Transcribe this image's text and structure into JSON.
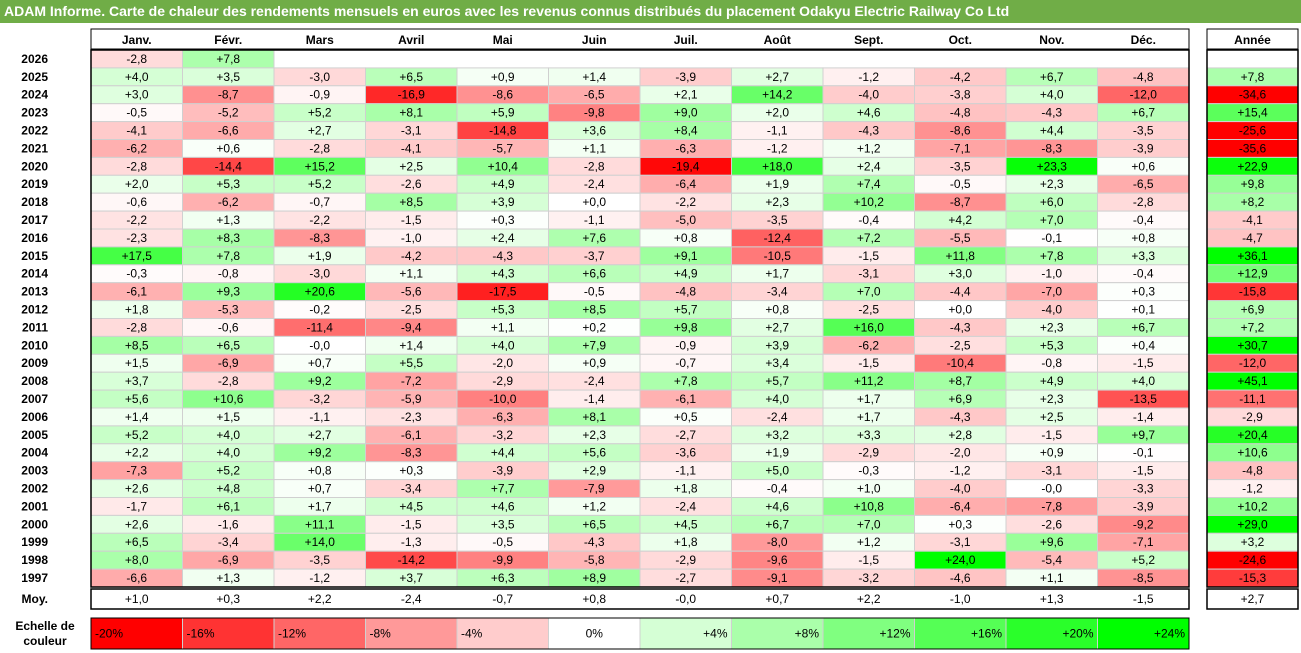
{
  "title": "ADAM Informe. Carte de chaleur des rendements mensuels en euros avec les revenus connus distribués du placement Odakyu Electric Railway Co Ltd",
  "chart_data": {
    "type": "heatmap",
    "months": [
      "Janv.",
      "Févr.",
      "Mars",
      "Avril",
      "Mai",
      "Juin",
      "Juil.",
      "Août",
      "Sept.",
      "Oct.",
      "Nov.",
      "Déc."
    ],
    "annual_header": "Année",
    "years": [
      "2026",
      "2025",
      "2024",
      "2023",
      "2022",
      "2021",
      "2020",
      "2019",
      "2018",
      "2017",
      "2016",
      "2015",
      "2014",
      "2013",
      "2012",
      "2011",
      "2010",
      "2009",
      "2008",
      "2007",
      "2006",
      "2005",
      "2004",
      "2003",
      "2002",
      "2001",
      "2000",
      "1999",
      "1998",
      "1997"
    ],
    "values": [
      [
        "-2,8",
        "+7,8",
        "",
        "",
        "",
        "",
        "",
        "",
        "",
        "",
        "",
        ""
      ],
      [
        "+4,0",
        "+3,5",
        "-3,0",
        "+6,5",
        "+0,9",
        "+1,4",
        "-3,9",
        "+2,7",
        "-1,2",
        "-4,2",
        "+6,7",
        "-4,8"
      ],
      [
        "+3,0",
        "-8,7",
        "-0,9",
        "-16,9",
        "-8,6",
        "-6,5",
        "+2,1",
        "+14,2",
        "-4,0",
        "-3,8",
        "+4,0",
        "-12,0"
      ],
      [
        "-0,5",
        "-5,2",
        "+5,2",
        "+8,1",
        "+5,9",
        "-9,8",
        "+9,0",
        "+2,0",
        "+4,6",
        "-4,8",
        "-4,3",
        "+6,7"
      ],
      [
        "-4,1",
        "-6,6",
        "+2,7",
        "-3,1",
        "-14,8",
        "+3,6",
        "+8,4",
        "-1,1",
        "-4,3",
        "-8,6",
        "+4,4",
        "-3,5"
      ],
      [
        "-6,2",
        "+0,6",
        "-2,8",
        "-4,1",
        "-5,7",
        "+1,1",
        "-6,3",
        "-1,2",
        "+1,2",
        "-7,1",
        "-8,3",
        "-3,9"
      ],
      [
        "-2,8",
        "-14,4",
        "+15,2",
        "+2,5",
        "+10,4",
        "-2,8",
        "-19,4",
        "+18,0",
        "+2,4",
        "-3,5",
        "+23,3",
        "+0,6"
      ],
      [
        "+2,0",
        "+5,3",
        "+5,2",
        "-2,6",
        "+4,9",
        "-2,4",
        "-6,4",
        "+1,9",
        "+7,4",
        "-0,5",
        "+2,3",
        "-6,5"
      ],
      [
        "-0,6",
        "-6,2",
        "-0,7",
        "+8,5",
        "+3,9",
        "+0,0",
        "-2,2",
        "+2,3",
        "+10,2",
        "-8,7",
        "+6,0",
        "-2,8"
      ],
      [
        "-2,2",
        "+1,3",
        "-2,2",
        "-1,5",
        "+0,3",
        "-1,1",
        "-5,0",
        "-3,5",
        "-0,4",
        "+4,2",
        "+7,0",
        "-0,4"
      ],
      [
        "-2,3",
        "+8,3",
        "-8,3",
        "-1,0",
        "+2,4",
        "+7,6",
        "+0,8",
        "-12,4",
        "+7,2",
        "-5,5",
        "-0,1",
        "+0,8"
      ],
      [
        "+17,5",
        "+7,8",
        "+1,9",
        "-4,2",
        "-4,3",
        "-3,7",
        "+9,1",
        "-10,5",
        "-1,5",
        "+11,8",
        "+7,8",
        "+3,3"
      ],
      [
        "-0,3",
        "-0,8",
        "-3,0",
        "+1,1",
        "+4,3",
        "+6,6",
        "+4,9",
        "+1,7",
        "-3,1",
        "+3,0",
        "-1,0",
        "-0,4"
      ],
      [
        "-6,1",
        "+9,3",
        "+20,6",
        "-5,6",
        "-17,5",
        "-0,5",
        "-4,8",
        "-3,4",
        "+7,0",
        "-4,4",
        "-7,0",
        "+0,3"
      ],
      [
        "+1,8",
        "-5,3",
        "-0,2",
        "-2,5",
        "+5,3",
        "+8,5",
        "+5,7",
        "+0,8",
        "-2,5",
        "+0,0",
        "-4,0",
        "+0,1"
      ],
      [
        "-2,8",
        "-0,6",
        "-11,4",
        "-9,4",
        "+1,1",
        "+0,2",
        "+9,8",
        "+2,7",
        "+16,0",
        "-4,3",
        "+2,3",
        "+6,7"
      ],
      [
        "+8,5",
        "+6,5",
        "-0,0",
        "+1,4",
        "+4,0",
        "+7,9",
        "-0,9",
        "+3,9",
        "-6,2",
        "-2,5",
        "+5,3",
        "+0,4"
      ],
      [
        "+1,5",
        "-6,9",
        "+0,7",
        "+5,5",
        "-2,0",
        "+0,9",
        "-0,7",
        "+3,4",
        "-1,5",
        "-10,4",
        "-0,8",
        "-1,5"
      ],
      [
        "+3,7",
        "-2,8",
        "+9,2",
        "-7,2",
        "-2,9",
        "-2,4",
        "+7,8",
        "+5,7",
        "+11,2",
        "+8,7",
        "+4,9",
        "+4,0"
      ],
      [
        "+5,6",
        "+10,6",
        "-3,2",
        "-5,9",
        "-10,0",
        "-1,4",
        "-6,1",
        "+4,0",
        "+1,7",
        "+6,9",
        "+2,3",
        "-13,5"
      ],
      [
        "+1,4",
        "+1,5",
        "-1,1",
        "-2,3",
        "-6,3",
        "+8,1",
        "+0,5",
        "-2,4",
        "+1,7",
        "-4,3",
        "+2,5",
        "-1,4"
      ],
      [
        "+5,2",
        "+4,0",
        "+2,7",
        "-6,1",
        "-3,2",
        "+2,3",
        "-2,7",
        "+3,2",
        "+3,3",
        "+2,8",
        "-1,5",
        "+9,7"
      ],
      [
        "+2,2",
        "+4,0",
        "+9,2",
        "-8,3",
        "+4,4",
        "+5,6",
        "-3,6",
        "+1,9",
        "-2,9",
        "-2,0",
        "+0,9",
        "-0,1"
      ],
      [
        "-7,3",
        "+5,2",
        "+0,8",
        "+0,3",
        "-3,9",
        "+2,9",
        "-1,1",
        "+5,0",
        "-0,3",
        "-1,2",
        "-3,1",
        "-1,5"
      ],
      [
        "+2,6",
        "+4,8",
        "+0,7",
        "-3,4",
        "+7,7",
        "-7,9",
        "+1,8",
        "-0,4",
        "+1,0",
        "-4,0",
        "-0,0",
        "-3,3"
      ],
      [
        "-1,7",
        "+6,1",
        "+1,7",
        "+4,5",
        "+4,6",
        "+1,2",
        "-2,4",
        "+4,6",
        "+10,8",
        "-6,4",
        "-7,8",
        "-3,9"
      ],
      [
        "+2,6",
        "-1,6",
        "+11,1",
        "-1,5",
        "+3,5",
        "+6,5",
        "+4,5",
        "+6,7",
        "+7,0",
        "+0,3",
        "-2,6",
        "-9,2"
      ],
      [
        "+6,5",
        "-3,4",
        "+14,0",
        "-1,3",
        "-0,5",
        "-4,3",
        "+1,8",
        "-8,0",
        "+1,2",
        "-3,1",
        "+9,6",
        "-7,1"
      ],
      [
        "+8,0",
        "-6,9",
        "-3,5",
        "-14,2",
        "-9,9",
        "-5,8",
        "-2,9",
        "-9,6",
        "-1,5",
        "+24,0",
        "-5,4",
        "+5,2"
      ],
      [
        "-6,6",
        "+1,3",
        "-1,2",
        "+3,7",
        "+6,3",
        "+8,9",
        "-2,7",
        "-9,1",
        "-3,2",
        "-4,6",
        "+1,1",
        "-8,5"
      ]
    ],
    "annual": [
      "",
      "+7,8",
      "-34,6",
      "+15,4",
      "-25,6",
      "-35,6",
      "+22,9",
      "+9,8",
      "+8,2",
      "-4,1",
      "-4,7",
      "+36,1",
      "+12,9",
      "-15,8",
      "+6,9",
      "+7,2",
      "+30,7",
      "-12,0",
      "+45,1",
      "-11,1",
      "-2,9",
      "+20,4",
      "+10,6",
      "-4,8",
      "-1,2",
      "+10,2",
      "+29,0",
      "+3,2",
      "-24,6",
      "-15,3"
    ],
    "average_label": "Moy.",
    "average": [
      "+1,0",
      "+0,3",
      "+2,2",
      "-2,4",
      "-0,7",
      "+0,8",
      "-0,0",
      "+0,7",
      "+2,2",
      "-1,0",
      "+1,3",
      "-1,5"
    ],
    "average_annual": "+2,7",
    "scale_label": "Echelle de couleur",
    "scale": [
      {
        "label": "-20%",
        "value": -20
      },
      {
        "label": "-16%",
        "value": -16
      },
      {
        "label": "-12%",
        "value": -12
      },
      {
        "label": "-8%",
        "value": -8
      },
      {
        "label": "-4%",
        "value": -4
      },
      {
        "label": "0%",
        "value": 0
      },
      {
        "label": "+4%",
        "value": 4
      },
      {
        "label": "+8%",
        "value": 8
      },
      {
        "label": "+12%",
        "value": 12
      },
      {
        "label": "+16%",
        "value": 16
      },
      {
        "label": "+20%",
        "value": 20
      },
      {
        "label": "+24%",
        "value": 24
      }
    ],
    "colors": {
      "negative_max": "#ff0000",
      "neutral": "#ffffff",
      "positive_max": "#00ff00",
      "title_bg": "#70ad47"
    }
  }
}
